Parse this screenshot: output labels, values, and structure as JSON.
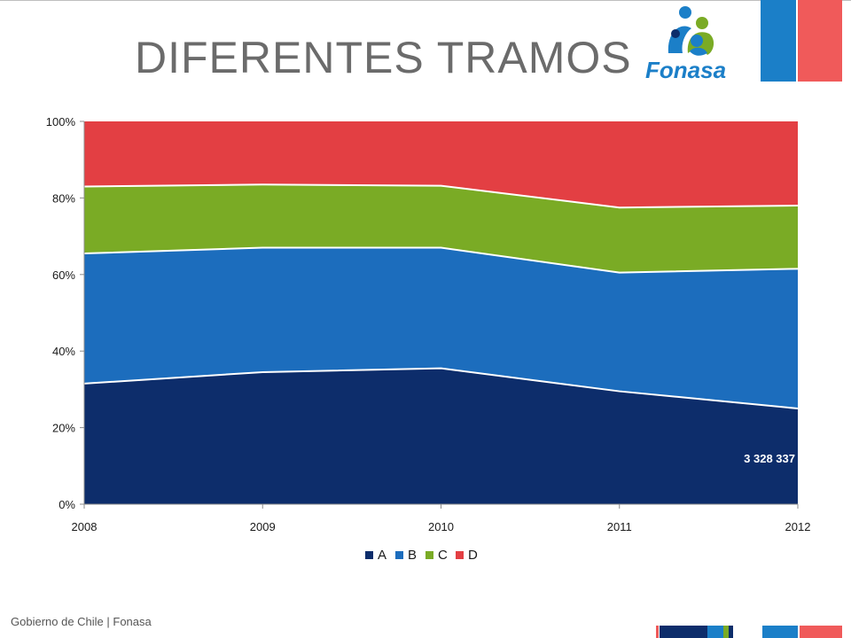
{
  "slide": {
    "title": "DIFERENTES TRAMOS",
    "logo_text": "Fonasa",
    "footer": "Gobierno de Chile | Fonasa"
  },
  "colors": {
    "A": "#0d2d6b",
    "B": "#1c6dbd",
    "C": "#7aab25",
    "D": "#e33f43",
    "title": "#6b6b6b",
    "flag_blue": "#1b7fc8",
    "flag_red": "#f05a5a",
    "flag_navy": "#0d2d6b"
  },
  "chart_data": {
    "type": "area",
    "stacked": true,
    "percent": true,
    "x": [
      "2008",
      "2009",
      "2010",
      "2011",
      "2012"
    ],
    "series": [
      {
        "name": "A",
        "values": [
          31.5,
          34.5,
          35.5,
          29.5,
          25.0
        ]
      },
      {
        "name": "B",
        "values": [
          34.0,
          32.5,
          31.5,
          31.0,
          36.5
        ]
      },
      {
        "name": "C",
        "values": [
          17.5,
          16.5,
          16.2,
          17.0,
          16.5
        ]
      },
      {
        "name": "D",
        "values": [
          17.0,
          16.5,
          16.8,
          22.5,
          22.0
        ]
      }
    ],
    "yticks": [
      "0%",
      "20%",
      "40%",
      "60%",
      "80%",
      "100%"
    ],
    "ylim": [
      0,
      100
    ],
    "legend": "bottom",
    "grid": false,
    "annotations": [
      {
        "series": "A",
        "x": "2012",
        "text": "3 328 337"
      }
    ]
  }
}
